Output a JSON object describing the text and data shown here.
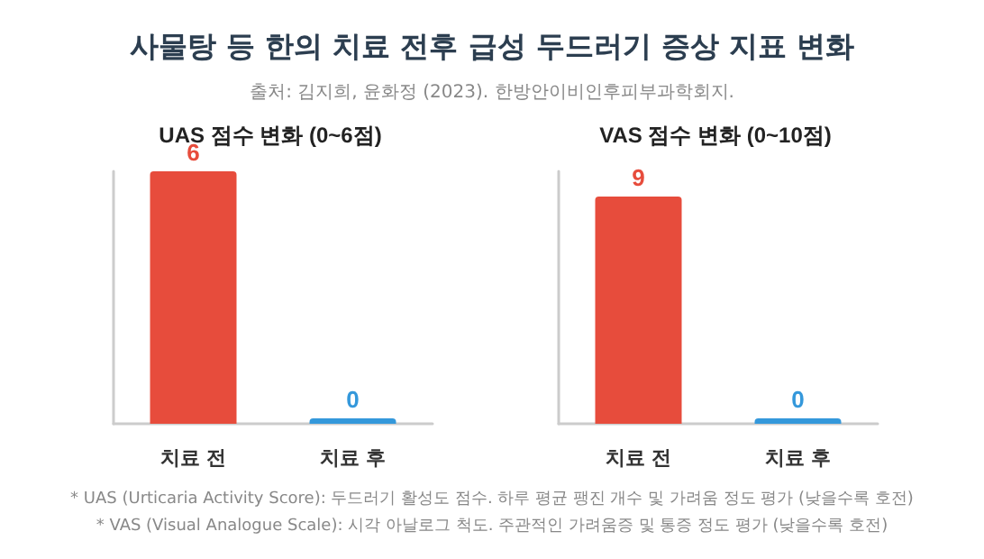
{
  "chart_data": [
    {
      "type": "bar",
      "title": "UAS 점수 변화 (0~6점)",
      "categories": [
        "치료 전",
        "치료 후"
      ],
      "values": [
        6,
        0
      ],
      "colors": [
        "#e74c3c",
        "#3498db"
      ],
      "ylim": [
        0,
        6
      ],
      "tick_labels": "x",
      "data_labels": true,
      "annotations": [
        "사물탕 등 한의 치료 전후 급성 두드러기 증상 지표 변화",
        "출처: 김지희, 윤화정 (2023). 한방안이비인후피부과학회지."
      ]
    },
    {
      "type": "bar",
      "title": "VAS 점수 변화 (0~10점)",
      "categories": [
        "치료 전",
        "치료 후"
      ],
      "values": [
        9,
        0
      ],
      "colors": [
        "#e74c3c",
        "#3498db"
      ],
      "ylim": [
        0,
        10
      ],
      "tick_labels": "x",
      "data_labels": true,
      "annotations": [
        "* UAS (Urticaria Activity Score): 두드러기 활성도 점수. 하루 평균 팽진 개수 및 가려움 정도 평가 (낮을수록 호전)",
        "* VAS (Visual Analogue Scale): 시각 아날로그 척도. 주관적인 가려움증 및 통증 정도 평가 (낮을수록 호전)"
      ]
    }
  ]
}
